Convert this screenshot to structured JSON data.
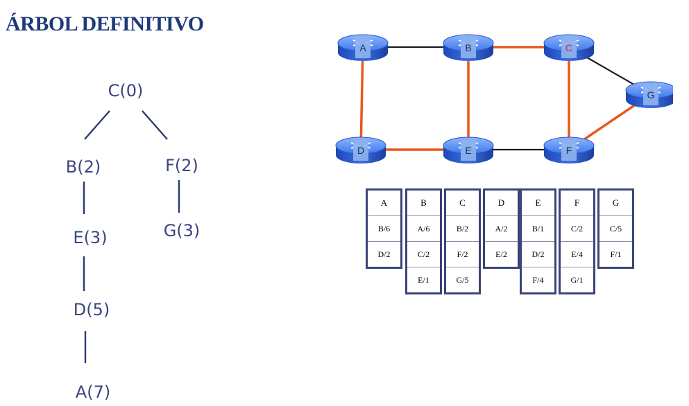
{
  "title": "ÁRBOL DEFINITIVO",
  "tree": {
    "nodes": {
      "C": "C(0)",
      "B": "B(2)",
      "F": "F(2)",
      "E": "E(3)",
      "G": "G(3)",
      "D": "D(5)",
      "A": "A(7)"
    },
    "edges": [
      [
        "C",
        "B"
      ],
      [
        "C",
        "F"
      ],
      [
        "B",
        "E"
      ],
      [
        "F",
        "G"
      ],
      [
        "E",
        "D"
      ],
      [
        "D",
        "A"
      ]
    ]
  },
  "network": {
    "routers": [
      "A",
      "B",
      "C",
      "D",
      "E",
      "F",
      "G"
    ],
    "root": "C",
    "root_label_color": "#e0243c",
    "label_color": "#1f2f66",
    "links": [
      {
        "from": "A",
        "to": "B",
        "in_tree": false
      },
      {
        "from": "B",
        "to": "C",
        "in_tree": true
      },
      {
        "from": "C",
        "to": "G",
        "in_tree": false
      },
      {
        "from": "A",
        "to": "D",
        "in_tree": true
      },
      {
        "from": "B",
        "to": "E",
        "in_tree": true
      },
      {
        "from": "C",
        "to": "F",
        "in_tree": true
      },
      {
        "from": "D",
        "to": "E",
        "in_tree": true
      },
      {
        "from": "E",
        "to": "F",
        "in_tree": false
      },
      {
        "from": "F",
        "to": "G",
        "in_tree": true
      }
    ],
    "tree_link_color": "#e8581c",
    "other_link_color": "#1a1a2a"
  },
  "table": {
    "columns": [
      {
        "header": "A",
        "entries": [
          "B/6",
          "D/2"
        ]
      },
      {
        "header": "B",
        "entries": [
          "A/6",
          "C/2",
          "E/1"
        ]
      },
      {
        "header": "C",
        "entries": [
          "B/2",
          "F/2",
          "G/5"
        ]
      },
      {
        "header": "D",
        "entries": [
          "A/2",
          "E/2"
        ]
      },
      {
        "header": "E",
        "entries": [
          "B/1",
          "D/2",
          "F/4"
        ]
      },
      {
        "header": "F",
        "entries": [
          "C/2",
          "E/4",
          "G/1"
        ]
      },
      {
        "header": "G",
        "entries": [
          "C/5",
          "F/1"
        ]
      }
    ]
  }
}
